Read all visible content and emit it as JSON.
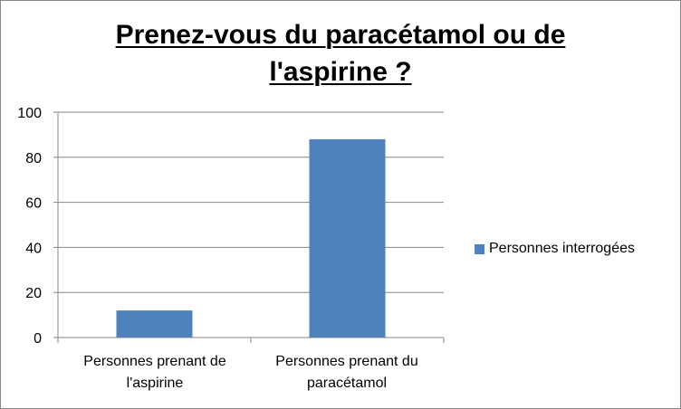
{
  "chart_data": {
    "type": "bar",
    "title_line1": "Prenez-vous du paracétamol ou de",
    "title_line2": "l'aspirine ?",
    "categories": [
      [
        "Personnes prenant de",
        "l'aspirine"
      ],
      [
        "Personnes prenant du",
        "paracétamol"
      ]
    ],
    "series": [
      {
        "name": "Personnes interrogées",
        "values": [
          12,
          88
        ],
        "color": "#4F81BD"
      }
    ],
    "yticks": [
      "0",
      "20",
      "40",
      "60",
      "80",
      "100"
    ],
    "ylim": [
      0,
      100
    ],
    "ytick_step": 20,
    "grid": true,
    "legend_position": "right",
    "xlabel": "",
    "ylabel": ""
  }
}
